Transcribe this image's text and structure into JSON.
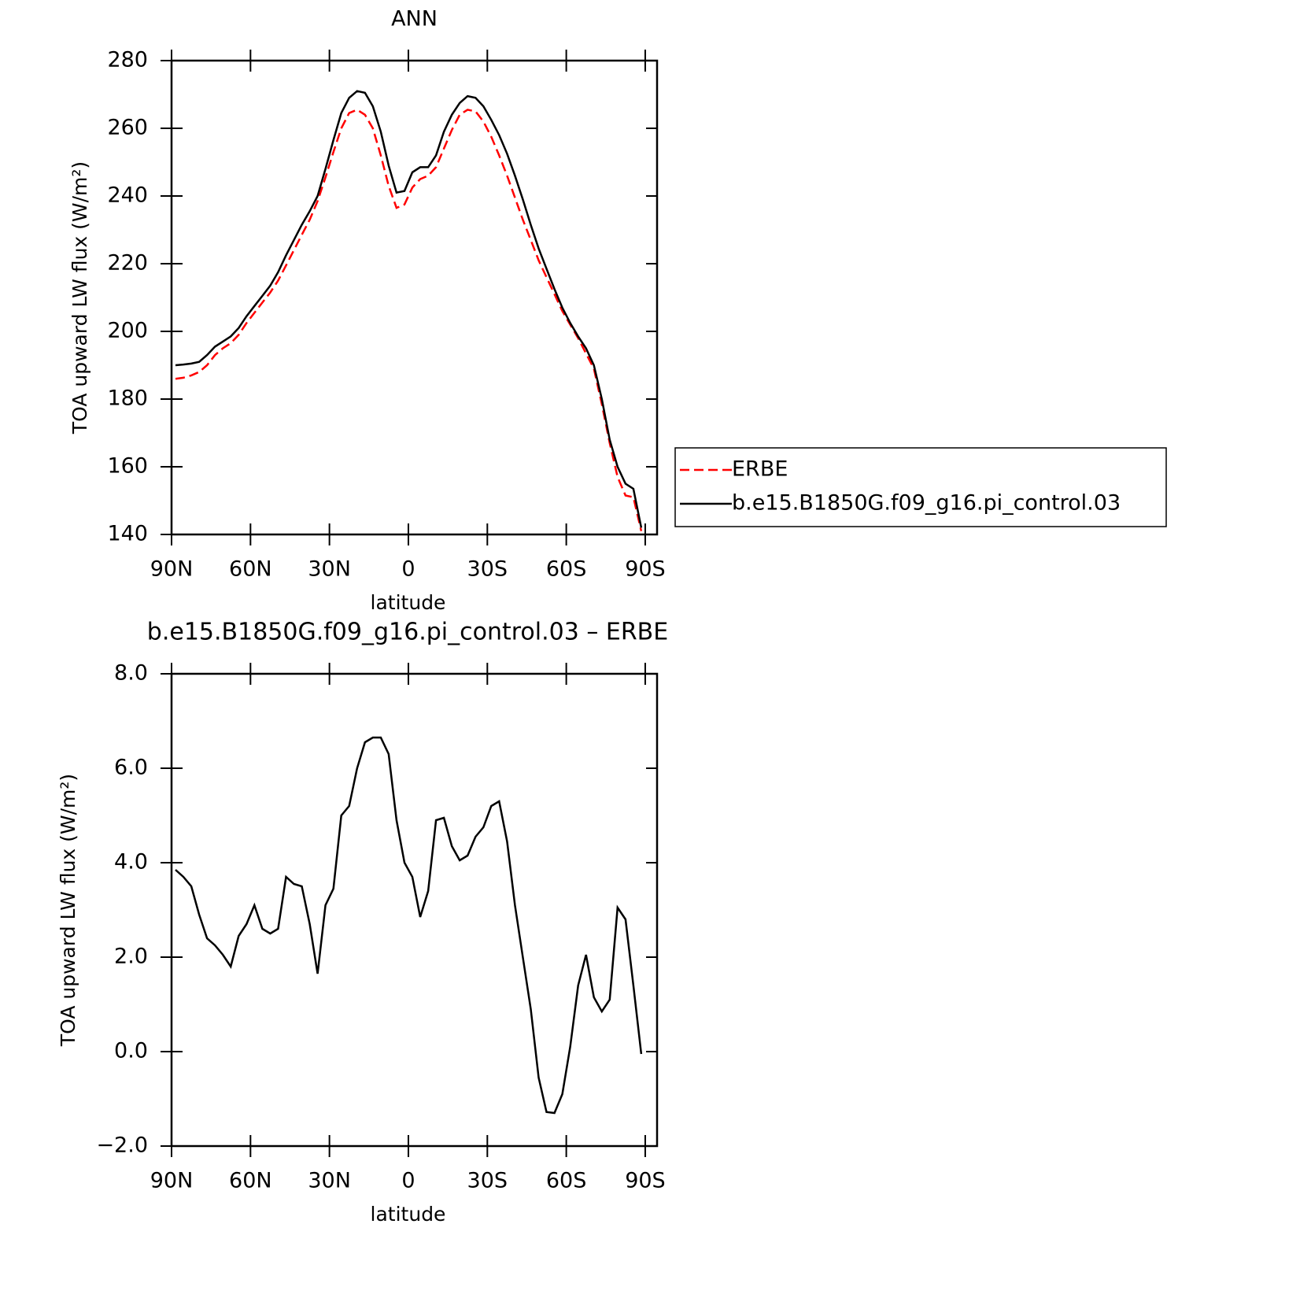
{
  "chart_data": [
    {
      "type": "line",
      "title": "ANN",
      "xlabel": "latitude",
      "ylabel": "TOA upward LW flux (W/m²)",
      "x": [
        88.5,
        85.5,
        82.5,
        79.5,
        76.5,
        73.5,
        70.5,
        67.5,
        64.5,
        61.5,
        58.5,
        55.5,
        52.5,
        49.5,
        46.5,
        43.5,
        40.5,
        37.5,
        34.5,
        31.5,
        28.5,
        25.5,
        22.5,
        19.5,
        16.5,
        13.5,
        10.5,
        7.5,
        4.5,
        1.5,
        -1.5,
        -4.5,
        -7.5,
        -10.5,
        -13.5,
        -16.5,
        -19.5,
        -22.5,
        -25.5,
        -28.5,
        -31.5,
        -34.5,
        -37.5,
        -40.5,
        -43.5,
        -46.5,
        -49.5,
        -52.5,
        -55.5,
        -58.5,
        -61.5,
        -64.5,
        -67.5,
        -70.5,
        -73.5,
        -76.5,
        -79.5,
        -82.5,
        -85.5,
        -88.5
      ],
      "series": [
        {
          "name": "ERBE",
          "color": "#ff0000",
          "dash": "dashed",
          "values": [
            186,
            186.3,
            187,
            188,
            190,
            193,
            195,
            196.5,
            199,
            202.5,
            205.5,
            208.5,
            211.5,
            215,
            219.5,
            224,
            228.5,
            233,
            238.5,
            245.5,
            253,
            260,
            264.5,
            265.5,
            264,
            260,
            252,
            243,
            236.5,
            237.5,
            242.5,
            245,
            246,
            248.5,
            254,
            259.5,
            264,
            265.5,
            265,
            262,
            257.5,
            252,
            246,
            239.5,
            233,
            227,
            221,
            216,
            211,
            206,
            202,
            198,
            193.5,
            189,
            178.5,
            167,
            157,
            151.5,
            151,
            141
          ]
        },
        {
          "name": "b.e15.B1850G.f09_g16.pi_control.03",
          "color": "#000000",
          "dash": "solid",
          "values": [
            190,
            190.2,
            190.5,
            191,
            193,
            195.5,
            197,
            198.5,
            201,
            204.5,
            207.5,
            210.5,
            213.5,
            217.5,
            222.5,
            227,
            231.5,
            235.5,
            240,
            248,
            256.5,
            264.5,
            269,
            271,
            270.5,
            266.5,
            259,
            249,
            241,
            241.5,
            247,
            248.5,
            248.5,
            252,
            259,
            264,
            267.5,
            269.5,
            269,
            266.5,
            262.5,
            258,
            252.5,
            246,
            239,
            231.5,
            224.5,
            218.5,
            212.5,
            207,
            202.5,
            198.5,
            195,
            190,
            180,
            168,
            160,
            155,
            153.5,
            142
          ]
        }
      ],
      "xlim": [
        90,
        -94.5
      ],
      "xticks": [
        {
          "value": 90,
          "label": "90N"
        },
        {
          "value": 60,
          "label": "60N"
        },
        {
          "value": 30,
          "label": "30N"
        },
        0,
        {
          "value": -30,
          "label": "30S"
        },
        {
          "value": -60,
          "label": "60S"
        },
        {
          "value": -90,
          "label": "90S"
        }
      ],
      "ylim": [
        140,
        280
      ],
      "yticks": [
        140,
        160,
        180,
        200,
        220,
        240,
        260,
        280
      ],
      "legend": "right"
    },
    {
      "type": "line",
      "title": "b.e15.B1850G.f09_g16.pi_control.03 – ERBE",
      "xlabel": "latitude",
      "ylabel": "TOA upward LW flux (W/m²)",
      "x": [
        88.5,
        85.5,
        82.5,
        79.5,
        76.5,
        73.5,
        70.5,
        67.5,
        64.5,
        61.5,
        58.5,
        55.5,
        52.5,
        49.5,
        46.5,
        43.5,
        40.5,
        37.5,
        34.5,
        31.5,
        28.5,
        25.5,
        22.5,
        19.5,
        16.5,
        13.5,
        10.5,
        7.5,
        4.5,
        1.5,
        -1.5,
        -4.5,
        -7.5,
        -10.5,
        -13.5,
        -16.5,
        -19.5,
        -22.5,
        -25.5,
        -28.5,
        -31.5,
        -34.5,
        -37.5,
        -40.5,
        -43.5,
        -46.5,
        -49.5,
        -52.5,
        -55.5,
        -58.5,
        -61.5,
        -64.5,
        -67.5,
        -70.5,
        -73.5,
        -76.5,
        -79.5,
        -82.5,
        -85.5,
        -88.5
      ],
      "series": [
        {
          "name": null,
          "color": "#000000",
          "dash": "solid",
          "values": [
            3.85,
            3.7,
            3.5,
            2.9,
            2.4,
            2.25,
            2.05,
            1.8,
            2.45,
            2.7,
            3.1,
            2.6,
            2.5,
            2.6,
            3.7,
            3.55,
            3.5,
            2.7,
            1.65,
            3.1,
            3.45,
            5.0,
            5.2,
            6.0,
            6.55,
            6.65,
            6.65,
            6.3,
            4.9,
            4.0,
            3.7,
            2.85,
            3.4,
            4.9,
            4.95,
            4.35,
            4.05,
            4.15,
            4.55,
            4.75,
            5.2,
            5.3,
            4.45,
            3.1,
            2.0,
            0.9,
            -0.55,
            -1.28,
            -1.3,
            -0.9,
            0.1,
            1.4,
            2.05,
            1.15,
            0.85,
            1.1,
            3.05,
            2.8,
            1.4,
            -0.05
          ]
        }
      ],
      "xlim": [
        90,
        -94.5
      ],
      "xticks": [
        {
          "value": 90,
          "label": "90N"
        },
        {
          "value": 60,
          "label": "60N"
        },
        {
          "value": 30,
          "label": "30N"
        },
        0,
        {
          "value": -30,
          "label": "30S"
        },
        {
          "value": -60,
          "label": "60S"
        },
        {
          "value": -90,
          "label": "90S"
        }
      ],
      "ylim": [
        -2,
        8
      ],
      "yticks": [
        {
          "value": -2,
          "label": "−2.0"
        },
        {
          "value": 0,
          "label": "0.0"
        },
        {
          "value": 2,
          "label": "2.0"
        },
        {
          "value": 4,
          "label": "4.0"
        },
        {
          "value": 6,
          "label": "6.0"
        },
        {
          "value": 8,
          "label": "8.0"
        }
      ]
    }
  ]
}
